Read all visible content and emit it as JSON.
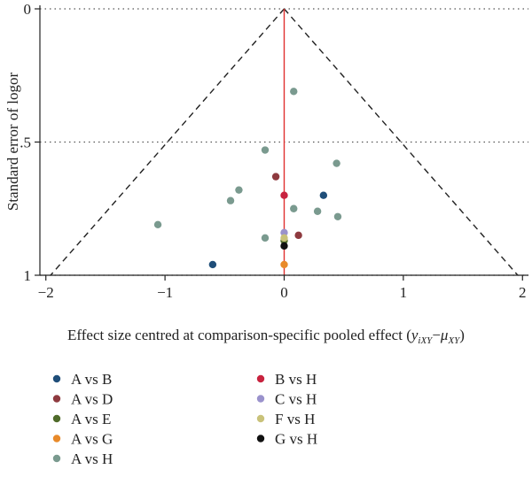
{
  "chart_data": {
    "type": "scatter",
    "title": "",
    "xlabel": "Effect size centred at comparison-specific pooled effect (",
    "xlabel_math": {
      "y": "y",
      "y_sub": "iXY",
      "minus": "−",
      "mu": "μ",
      "mu_sub": "XY",
      "close": ")"
    },
    "ylabel": "Standard error of logor",
    "xlim": [
      -2.05,
      2.05
    ],
    "ylim": [
      0,
      1
    ],
    "y_reversed": true,
    "x_ticks": [
      {
        "value": -2,
        "label": "−2"
      },
      {
        "value": -1,
        "label": "−1"
      },
      {
        "value": 0,
        "label": "0"
      },
      {
        "value": 1,
        "label": "1"
      },
      {
        "value": 2,
        "label": "2"
      }
    ],
    "y_ticks": [
      {
        "value": 0,
        "label": "0"
      },
      {
        "value": 0.5,
        "label": ".5"
      },
      {
        "value": 1,
        "label": "1"
      }
    ],
    "grid": "horizontal dotted at y ticks",
    "reference_line": {
      "x": 0,
      "color": "#e0302f"
    },
    "funnel_limits": {
      "z": 1.96,
      "style": "dashed",
      "color": "#222222"
    },
    "legend_position": "bottom",
    "series": [
      {
        "name": "A vs B",
        "color": "#1f4e79",
        "points": [
          {
            "x": -0.6,
            "y": 0.96
          },
          {
            "x": 0.33,
            "y": 0.7
          }
        ]
      },
      {
        "name": "A vs D",
        "color": "#8e3a3f",
        "points": [
          {
            "x": -0.07,
            "y": 0.63
          },
          {
            "x": 0.12,
            "y": 0.85
          }
        ]
      },
      {
        "name": "A vs E",
        "color": "#4f6b2a",
        "points": [
          {
            "x": 0.0,
            "y": 0.87
          }
        ]
      },
      {
        "name": "A vs G",
        "color": "#e88a2a",
        "points": [
          {
            "x": 0.0,
            "y": 0.96
          }
        ]
      },
      {
        "name": "A vs H",
        "color": "#7a9a8f",
        "points": [
          {
            "x": 0.08,
            "y": 0.31
          },
          {
            "x": -0.16,
            "y": 0.53
          },
          {
            "x": 0.44,
            "y": 0.58
          },
          {
            "x": -0.38,
            "y": 0.68
          },
          {
            "x": -0.45,
            "y": 0.72
          },
          {
            "x": 0.08,
            "y": 0.75
          },
          {
            "x": 0.28,
            "y": 0.76
          },
          {
            "x": 0.45,
            "y": 0.78
          },
          {
            "x": -1.06,
            "y": 0.81
          },
          {
            "x": -0.16,
            "y": 0.86
          }
        ]
      },
      {
        "name": "B vs H",
        "color": "#c8233f",
        "points": [
          {
            "x": 0.0,
            "y": 0.7
          }
        ]
      },
      {
        "name": "C vs H",
        "color": "#9a92cc",
        "points": [
          {
            "x": 0.0,
            "y": 0.84
          }
        ]
      },
      {
        "name": "F vs H",
        "color": "#c9c27a",
        "points": [
          {
            "x": 0.0,
            "y": 0.86
          }
        ]
      },
      {
        "name": "G vs H",
        "color": "#111111",
        "points": [
          {
            "x": 0.0,
            "y": 0.89
          }
        ]
      }
    ]
  }
}
